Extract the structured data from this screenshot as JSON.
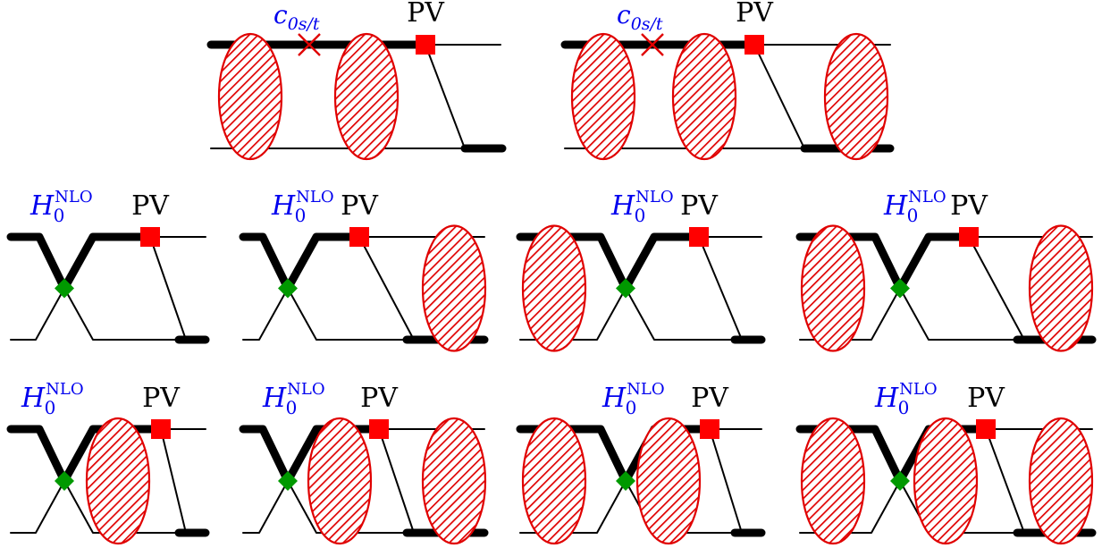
{
  "labels": {
    "pv": "PV",
    "contact_base": "c",
    "contact_sub": "0s/t",
    "h_base": "H",
    "h_sub": "0",
    "h_sup": "NLO"
  },
  "colors": {
    "line": "#000000",
    "blob": "#e00000",
    "blob_fill": "#ffffff",
    "pv_square": "#ff0000",
    "h_diamond": "#009900",
    "label_blue": "#0000ee",
    "label_black": "#000000"
  },
  "rows": [
    {
      "name": "row-1",
      "diagrams": [
        {
          "name": "diagram-1-1",
          "vertex": "contact",
          "blobs": [
            "left",
            "middle"
          ]
        },
        {
          "name": "diagram-1-2",
          "vertex": "contact",
          "blobs": [
            "left",
            "middle",
            "right"
          ]
        }
      ]
    },
    {
      "name": "row-2",
      "diagrams": [
        {
          "name": "diagram-2-1",
          "vertex": "h0nlo",
          "blobs": []
        },
        {
          "name": "diagram-2-2",
          "vertex": "h0nlo",
          "blobs": [
            "right"
          ]
        },
        {
          "name": "diagram-2-3",
          "vertex": "h0nlo",
          "blobs": [
            "left"
          ]
        },
        {
          "name": "diagram-2-4",
          "vertex": "h0nlo",
          "blobs": [
            "left",
            "right"
          ]
        }
      ]
    },
    {
      "name": "row-3",
      "diagrams": [
        {
          "name": "diagram-3-1",
          "vertex": "h0nlo",
          "blobs": [
            "middle"
          ]
        },
        {
          "name": "diagram-3-2",
          "vertex": "h0nlo",
          "blobs": [
            "middle",
            "right"
          ]
        },
        {
          "name": "diagram-3-3",
          "vertex": "h0nlo",
          "blobs": [
            "left",
            "middle"
          ]
        },
        {
          "name": "diagram-3-4",
          "vertex": "h0nlo",
          "blobs": [
            "left",
            "middle",
            "right"
          ]
        }
      ]
    }
  ]
}
